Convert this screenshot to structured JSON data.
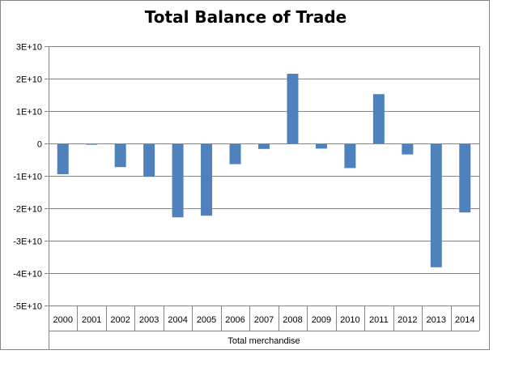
{
  "chart_data": {
    "type": "bar",
    "title": "Total Balance of Trade",
    "xlabel": "Total merchandise",
    "ylabel": "",
    "categories": [
      "2000",
      "2001",
      "2002",
      "2003",
      "2004",
      "2005",
      "2006",
      "2007",
      "2008",
      "2009",
      "2010",
      "2011",
      "2012",
      "2013",
      "2014"
    ],
    "values": [
      -9500000000.0,
      -400000000.0,
      -7300000000.0,
      -10300000000.0,
      -22800000000.0,
      -22300000000.0,
      -6400000000.0,
      -1700000000.0,
      21500000000.0,
      -1600000000.0,
      -7600000000.0,
      15200000000.0,
      -3400000000.0,
      -38200000000.0,
      -21300000000.0
    ],
    "ylim": [
      -50000000000.0,
      30000000000.0
    ],
    "yticks": [
      30000000000.0,
      20000000000.0,
      10000000000.0,
      0,
      -10000000000.0,
      -20000000000.0,
      -30000000000.0,
      -40000000000.0,
      -50000000000.0
    ],
    "ytick_labels": [
      "3E+10",
      "2E+10",
      "1E+10",
      "0",
      "-1E+10",
      "-2E+10",
      "-3E+10",
      "-4E+10",
      "-5E+10"
    ],
    "grid": true,
    "legend": false,
    "bar_color": "#4f81bd",
    "gridline_color": "#868686"
  }
}
